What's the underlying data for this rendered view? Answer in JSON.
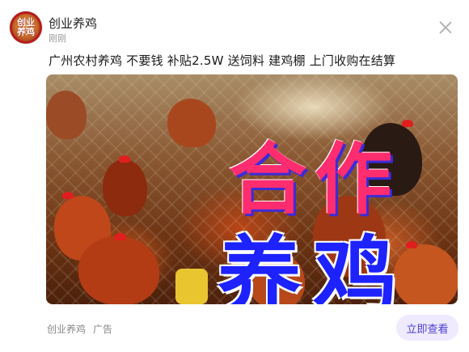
{
  "account": {
    "avatar_text": "创业养鸡",
    "name": "创业养鸡",
    "time": "刚刚"
  },
  "ad": {
    "headline": "广州农村养鸡 不要钱 补贴2.5W 送饲料 建鸡棚 上门收购在结算",
    "image_text_line1": "合作",
    "image_text_line2": "养鸡"
  },
  "footer": {
    "advertiser": "创业养鸡",
    "ad_label": "广告",
    "cta_label": "立即查看"
  },
  "colors": {
    "cta_bg": "#efeafd",
    "cta_text": "#4a3fd6",
    "overlay_pink": "#ff2d6f",
    "overlay_blue": "#1d22ff"
  },
  "icons": [
    "close-icon"
  ]
}
